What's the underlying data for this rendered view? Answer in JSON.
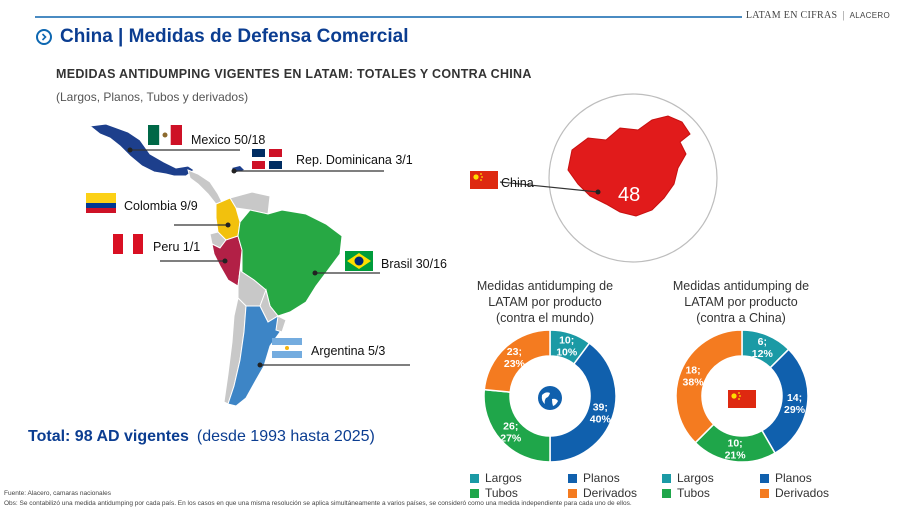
{
  "header": {
    "brand": "LATAM EN CIFRAS",
    "separator": "|",
    "org": "ALACERO",
    "title": "China | Medidas de Defensa Comercial",
    "subtitle": "MEDIDAS ANTIDUMPING VIGENTES EN LATAM: TOTALES Y CONTRA CHINA",
    "note": "(Largos, Planos, Tubos y derivados)"
  },
  "map": {
    "countries": [
      {
        "name": "Mexico",
        "label": "Mexico 50/18",
        "total": 50,
        "vs_china": 18
      },
      {
        "name": "Rep. Dominicana",
        "label": "Rep. Dominicana 3/1",
        "total": 3,
        "vs_china": 1
      },
      {
        "name": "Colombia",
        "label": "Colombia 9/9",
        "total": 9,
        "vs_china": 9
      },
      {
        "name": "Peru",
        "label": "Peru 1/1",
        "total": 1,
        "vs_china": 1
      },
      {
        "name": "Brasil",
        "label": "Brasil 30/16",
        "total": 30,
        "vs_china": 16
      },
      {
        "name": "Argentina",
        "label": "Argentina 5/3",
        "total": 5,
        "vs_china": 3
      }
    ],
    "china_label": "China",
    "china_value": "48"
  },
  "total": {
    "main": "Total: 98 AD vigentes",
    "range": "(desde 1993 hasta 2025)"
  },
  "chart_data": [
    {
      "type": "pie",
      "title_lines": [
        "Medidas antidumping de",
        "LATAM por producto",
        "(contra el mundo)"
      ],
      "categories": [
        "Largos",
        "Planos",
        "Tubos",
        "Derivados"
      ],
      "values": [
        10,
        39,
        26,
        23
      ],
      "percents": [
        10,
        40,
        27,
        23
      ],
      "labels": [
        "10;|10%",
        "39;|40%",
        "26;|27%",
        "23;|23%"
      ],
      "colors": [
        "#1b9aa5",
        "#1060ad",
        "#1fa64a",
        "#f47b20"
      ]
    },
    {
      "type": "pie",
      "title_lines": [
        "Medidas antidumping de",
        "LATAM por producto",
        "(contra a China)"
      ],
      "categories": [
        "Largos",
        "Planos",
        "Tubos",
        "Derivados"
      ],
      "values": [
        6,
        14,
        10,
        18
      ],
      "percents": [
        12,
        29,
        21,
        38
      ],
      "labels": [
        "6;|12%",
        "14;|29%",
        "10;|21%",
        "18;|38%"
      ],
      "colors": [
        "#1b9aa5",
        "#1060ad",
        "#1fa64a",
        "#f47b20"
      ]
    }
  ],
  "legend": {
    "items": [
      {
        "label": "Largos",
        "color": "#1b9aa5"
      },
      {
        "label": "Planos",
        "color": "#1060ad"
      },
      {
        "label": "Tubos",
        "color": "#1fa64a"
      },
      {
        "label": "Derivados",
        "color": "#f47b20"
      }
    ]
  },
  "footer": {
    "source": "Fuente: Alacero, camaras nacionales",
    "obs": "Obs: Se contabilizó una medida antidumping por cada país. En los casos en que una misma resolución se aplica simultáneamente a varios países, se consideró como una medida independiente para cada uno de ellos."
  }
}
